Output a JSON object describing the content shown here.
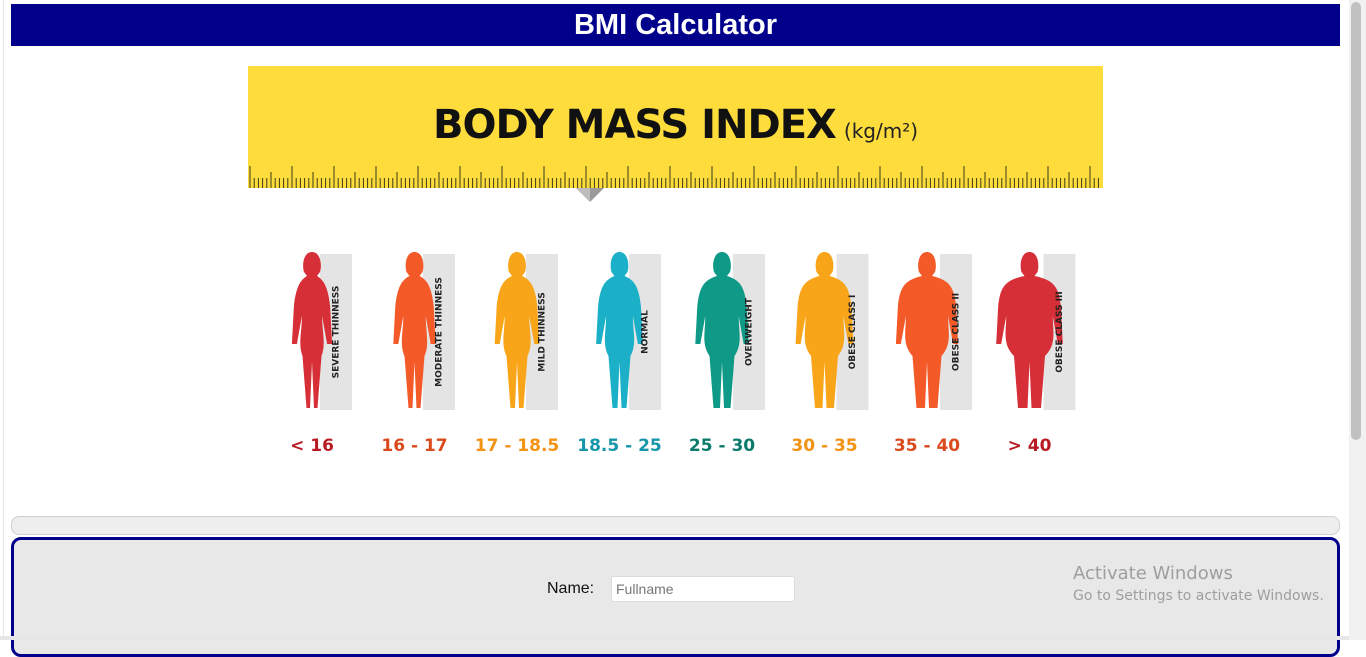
{
  "header": {
    "title": "BMI Calculator"
  },
  "bmi_chart": {
    "title": "BODY MASS INDEX",
    "unit": "(kg/m²)",
    "categories": [
      {
        "label": "SEVERE THINNESS",
        "range": "< 16",
        "color": "#d72f37",
        "range_color": "#b71c25",
        "width": 0.55
      },
      {
        "label": "MODERATE THINNESS",
        "range": "16 - 17",
        "color": "#f35a28",
        "range_color": "#d94a1c",
        "width": 0.6
      },
      {
        "label": "MILD THINNESS",
        "range": "17 - 18.5",
        "color": "#f9a51a",
        "range_color": "#f39314",
        "width": 0.65
      },
      {
        "label": "NORMAL",
        "range": "18.5 - 25",
        "color": "#1bb0c8",
        "range_color": "#1596a9",
        "width": 0.7
      },
      {
        "label": "OVERWEIGHT",
        "range": "25 - 30",
        "color": "#0e9a86",
        "range_color": "#0b7a6a",
        "width": 0.85
      },
      {
        "label": "OBESE CLASS I",
        "range": "30 - 35",
        "color": "#f9a51a",
        "range_color": "#f39314",
        "width": 0.95
      },
      {
        "label": "OBESE CLASS II",
        "range": "35 - 40",
        "color": "#f35a28",
        "range_color": "#d94a1c",
        "width": 1.05
      },
      {
        "label": "OBESE CLASS III",
        "range": "> 40",
        "color": "#d72f37",
        "range_color": "#b71c25",
        "width": 1.15
      }
    ]
  },
  "form": {
    "name_label": "Name:",
    "name_placeholder": "Fullname",
    "name_value": ""
  },
  "watermark": {
    "line1": "Activate Windows",
    "line2": "Go to Settings to activate Windows."
  },
  "colors": {
    "brand": "#00008b",
    "ruler": "#fddc3c",
    "panel": "#e8e8e8"
  }
}
